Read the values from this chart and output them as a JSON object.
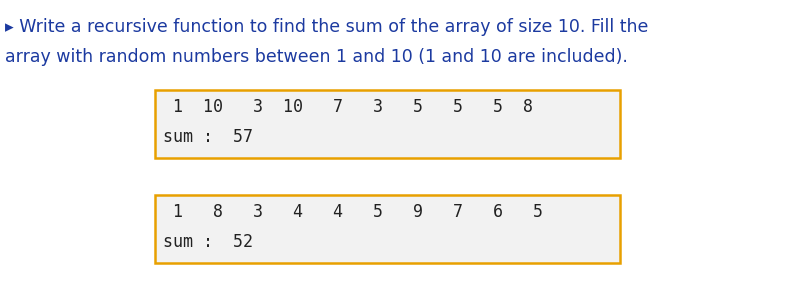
{
  "title_line1": "▸ Write a recursive function to find the sum of the array of size 10. Fill the",
  "title_line2": "array with random numbers between 1 and 10 (1 and 10 are included).",
  "box1_array": " 1  10   3  10   7   3   5   5   5  8",
  "box1_sum": "sum :  57",
  "box2_array": " 1   8   3   4   4   5   9   7   6   5",
  "box2_sum": "sum :  52",
  "box_border_color": "#E8A000",
  "box_bg_color": "#F2F2F2",
  "title_color": "#1C3AA0",
  "text_color": "#222222",
  "bg_color": "#FFFFFF",
  "fig_width": 7.93,
  "fig_height": 2.95,
  "title_fontsize": 12.5,
  "array_fontsize": 12.0,
  "sum_fontsize": 12.0
}
